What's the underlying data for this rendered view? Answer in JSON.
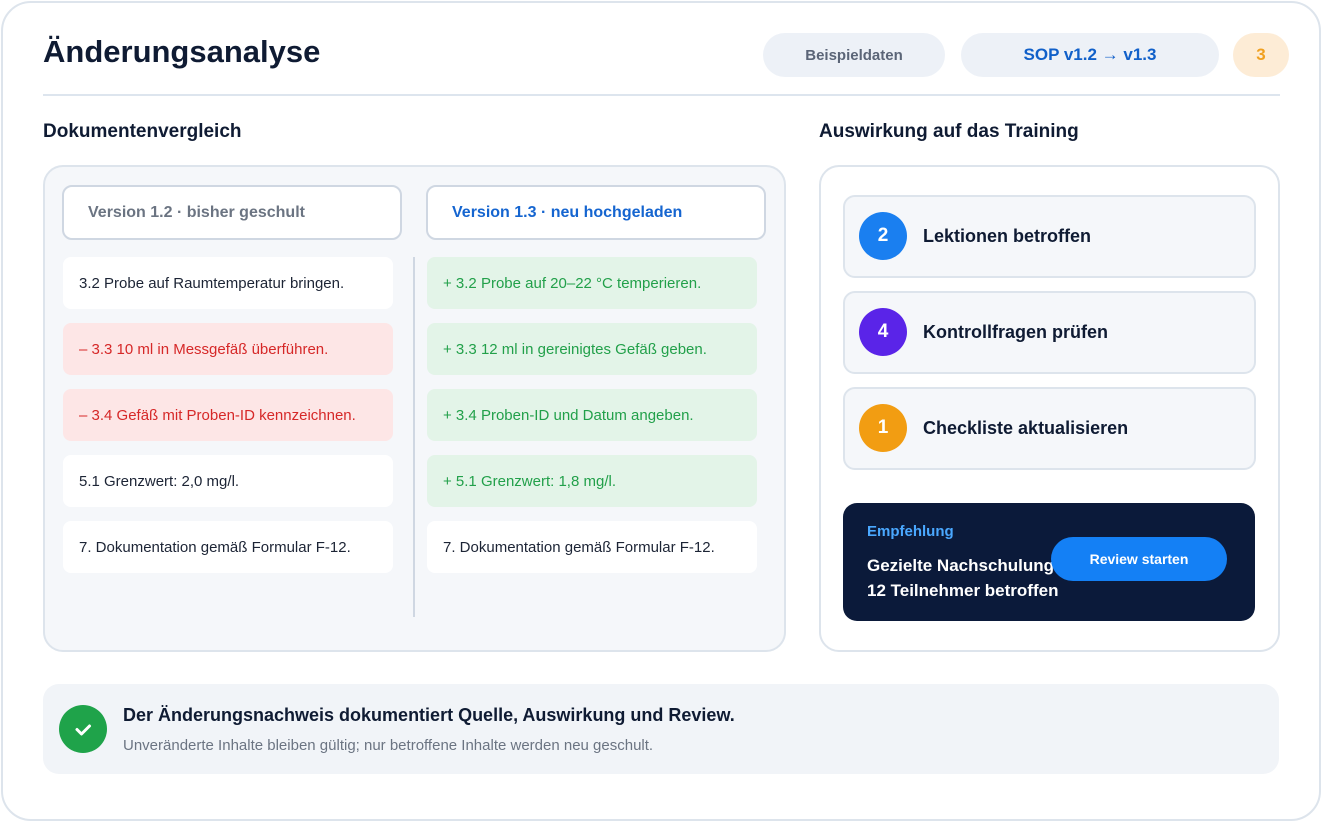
{
  "header": {
    "title": "Änderungsanalyse",
    "badges": [
      {
        "text": "Beispieldaten",
        "color": "#5b6577",
        "background": "#edf1f7"
      },
      {
        "text": "SOP v1.2 → v1.3",
        "color": "#1160c9",
        "background": "#edf1f7"
      },
      {
        "text": "3",
        "color": "#f0a020",
        "background": "#fdecd6"
      }
    ]
  },
  "comparison": {
    "heading": "Dokumentenvergleich",
    "old": {
      "label": "Version 1.2 · bisher geschult",
      "color": "#6b7482",
      "lines": [
        {
          "text": "3.2 Probe auf Raumtemperatur bringen.",
          "style": "neutral"
        },
        {
          "text": "– 3.3 10 ml in Messgefäß überführen.",
          "style": "removed"
        },
        {
          "text": "– 3.4 Gefäß mit Proben-ID kennzeichnen.",
          "style": "removed"
        },
        {
          "text": "5.1 Grenzwert: 2,0 mg/l.",
          "style": "neutral"
        },
        {
          "text": "7. Dokumentation gemäß Formular F-12.",
          "style": "neutral"
        }
      ]
    },
    "new": {
      "label": "Version 1.3 · neu hochgeladen",
      "color": "#1565d0",
      "lines": [
        {
          "text": "+ 3.2 Probe auf 20–22 °C temperieren.",
          "style": "added"
        },
        {
          "text": "+ 3.3 12 ml in gereinigtes Gefäß geben.",
          "style": "added"
        },
        {
          "text": "+ 3.4 Proben-ID und Datum angeben.",
          "style": "added"
        },
        {
          "text": "+ 5.1 Grenzwert: 1,8 mg/l.",
          "style": "added"
        },
        {
          "text": "7. Dokumentation gemäß Formular F-12.",
          "style": "neutral"
        }
      ]
    }
  },
  "impact": {
    "heading": "Auswirkung auf das Training",
    "items": [
      {
        "count": "2",
        "label": "Lektionen betroffen",
        "color": "#1a7ff0"
      },
      {
        "count": "4",
        "label": "Kontrollfragen prüfen",
        "color": "#5a24e8"
      },
      {
        "count": "1",
        "label": "Checkliste aktualisieren",
        "color": "#f29d12"
      }
    ],
    "recommendation": {
      "label": "Empfehlung",
      "lines": [
        "Gezielte Nachschulung",
        "12 Teilnehmer betroffen"
      ],
      "button": "Review starten"
    }
  },
  "footer": {
    "title": "Der Änderungsnachweis dokumentiert Quelle, Auswirkung und Review.",
    "subtitle": "Unveränderte Inhalte bleiben gültig; nur betroffene Inhalte werden neu geschult."
  }
}
